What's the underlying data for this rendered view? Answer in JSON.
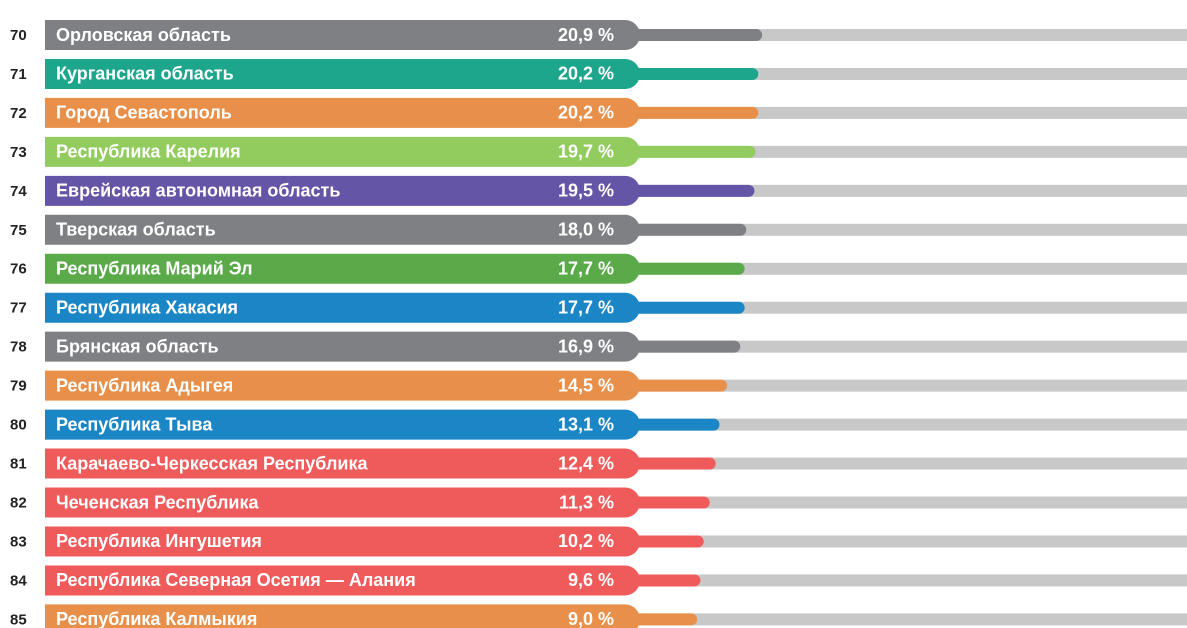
{
  "chart_data": {
    "type": "bar",
    "ranks": [
      70,
      71,
      72,
      73,
      74,
      75,
      76,
      77,
      78,
      79,
      80,
      81,
      82,
      83,
      84,
      85
    ],
    "categories": [
      "Орловская область",
      "Курганская область",
      "Город Севастополь",
      "Республика Карелия",
      "Еврейская автономная область",
      "Тверская область",
      "Республика Марий Эл",
      "Республика Хакасия",
      "Брянская область",
      "Республика Адыгея",
      "Республика Тыва",
      "Карачаево-Черкесская Республика",
      "Чеченская Республика",
      "Республика Ингушетия",
      "Республика Северная Осетия — Алания",
      "Республика Калмыкия"
    ],
    "values": [
      20.9,
      20.2,
      20.2,
      19.7,
      19.5,
      18.0,
      17.7,
      17.7,
      16.9,
      14.5,
      13.1,
      12.4,
      11.3,
      10.2,
      9.6,
      9.0
    ],
    "value_labels": [
      "20,9 %",
      "20,2 %",
      "20,2 %",
      "19,7 %",
      "19,5 %",
      "18,0 %",
      "17,7 %",
      "17,7 %",
      "16,9 %",
      "14,5 %",
      "13,1 %",
      "12,4 %",
      "11,3 %",
      "10,2 %",
      "9,6 %",
      "9,0 %"
    ],
    "colors": [
      "#7f8083",
      "#1ea68d",
      "#e8904a",
      "#92cc5e",
      "#6455a7",
      "#7f8083",
      "#5aaa4a",
      "#1b86c6",
      "#7f8083",
      "#e8904a",
      "#1b86c6",
      "#ef5b5b",
      "#ef5b5b",
      "#ef5b5b",
      "#ef5b5b",
      "#e8904a"
    ],
    "xlim": [
      0,
      100
    ]
  }
}
